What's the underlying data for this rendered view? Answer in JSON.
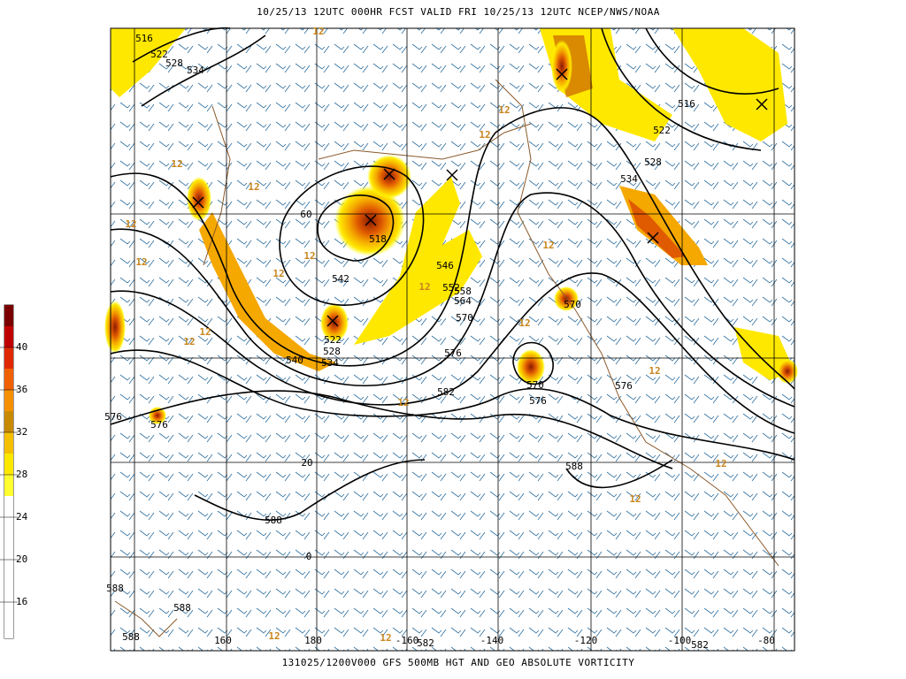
{
  "header": {
    "title": "10/25/13 12UTC  000HR  FCST VALID FRI 10/25/13 12UTC  NCEP/NWS/NOAA"
  },
  "footer": {
    "caption": "131025/1200V000 GFS 500MB HGT AND GEO ABSOLUTE VORTICITY"
  },
  "colorbar": {
    "labels": [
      "40",
      "36",
      "32",
      "28",
      "24",
      "20",
      "16"
    ]
  },
  "map": {
    "longitude_labels": [
      "160",
      "180",
      "-160",
      "-140",
      "-120",
      "-100",
      "-80"
    ],
    "latitude_labels": [
      "60",
      "20",
      "0"
    ],
    "height_labels": [
      "516",
      "522",
      "528",
      "534",
      "516",
      "522",
      "528",
      "534",
      "518",
      "546",
      "542",
      "552",
      "558",
      "564",
      "570",
      "576",
      "582",
      "522",
      "528",
      "534",
      "540",
      "570",
      "576",
      "576",
      "576",
      "588",
      "588",
      "588",
      "582",
      "582",
      "570",
      "588",
      "588",
      "576"
    ],
    "vorticity_labels": [
      "12",
      "12",
      "12",
      "12",
      "12",
      "12",
      "12",
      "12",
      "12",
      "12",
      "12",
      "12",
      "12",
      "12",
      "12",
      "12",
      "12",
      "12",
      "12",
      "12"
    ]
  }
}
